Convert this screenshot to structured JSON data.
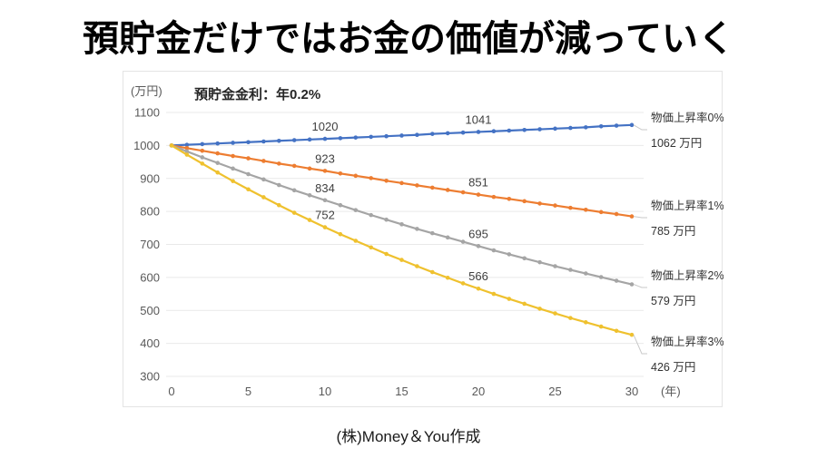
{
  "page": {
    "title": "預貯金だけではお金の価値が減っていく",
    "credit": "(株)Money＆You作成"
  },
  "chart_data": {
    "type": "line",
    "subtitle": "預貯金金利：年0.2%",
    "y_unit_label": "(万円)",
    "x_unit_label": "(年)",
    "xlabel": "年",
    "ylabel": "万円",
    "xlim": [
      0,
      30
    ],
    "ylim": [
      300,
      1100
    ],
    "xticks": [
      0,
      5,
      10,
      15,
      20,
      25,
      30
    ],
    "yticks": [
      300,
      400,
      500,
      600,
      700,
      800,
      900,
      1000,
      1100
    ],
    "grid": "horizontal",
    "legend_position": "right-annotations",
    "x": [
      0,
      1,
      2,
      3,
      4,
      5,
      6,
      7,
      8,
      9,
      10,
      11,
      12,
      13,
      14,
      15,
      16,
      17,
      18,
      19,
      20,
      21,
      22,
      23,
      24,
      25,
      26,
      27,
      28,
      29,
      30
    ],
    "series": [
      {
        "name": "物価上昇率0%",
        "end_label": "1062 万円",
        "color": "#4472C4",
        "values": [
          1000,
          1002,
          1004,
          1006,
          1008,
          1010,
          1012,
          1014,
          1016,
          1018,
          1020,
          1022,
          1024,
          1026,
          1028,
          1030,
          1032,
          1035,
          1037,
          1039,
          1041,
          1043,
          1045,
          1047,
          1049,
          1051,
          1053,
          1055,
          1058,
          1060,
          1062
        ],
        "point_labels": [
          {
            "x": 10,
            "label": "1020"
          },
          {
            "x": 20,
            "label": "1041"
          }
        ]
      },
      {
        "name": "物価上昇率1%",
        "end_label": "785 万円",
        "color": "#ED7D31",
        "values": [
          1000,
          992,
          984,
          976,
          968,
          961,
          953,
          945,
          938,
          930,
          923,
          915,
          908,
          901,
          893,
          886,
          879,
          872,
          865,
          858,
          851,
          844,
          838,
          831,
          824,
          818,
          811,
          805,
          798,
          792,
          785
        ],
        "point_labels": [
          {
            "x": 10,
            "label": "923"
          },
          {
            "x": 20,
            "label": "851"
          }
        ]
      },
      {
        "name": "物価上昇率2%",
        "end_label": "579 万円",
        "color": "#A5A5A5",
        "values": [
          1000,
          982,
          964,
          947,
          930,
          913,
          897,
          880,
          864,
          849,
          834,
          819,
          804,
          789,
          775,
          761,
          747,
          734,
          721,
          708,
          695,
          682,
          670,
          658,
          646,
          634,
          623,
          612,
          601,
          590,
          579
        ],
        "point_labels": [
          {
            "x": 10,
            "label": "834"
          },
          {
            "x": 20,
            "label": "695"
          }
        ]
      },
      {
        "name": "物価上昇率3%",
        "end_label": "426 万円",
        "color": "#EFC12E",
        "values": [
          1000,
          972,
          945,
          918,
          892,
          867,
          843,
          819,
          796,
          774,
          752,
          731,
          711,
          691,
          671,
          653,
          634,
          616,
          599,
          582,
          566,
          550,
          535,
          520,
          505,
          491,
          477,
          464,
          451,
          438,
          426
        ],
        "point_labels": [
          {
            "x": 10,
            "label": "752"
          },
          {
            "x": 20,
            "label": "566"
          }
        ]
      }
    ]
  }
}
